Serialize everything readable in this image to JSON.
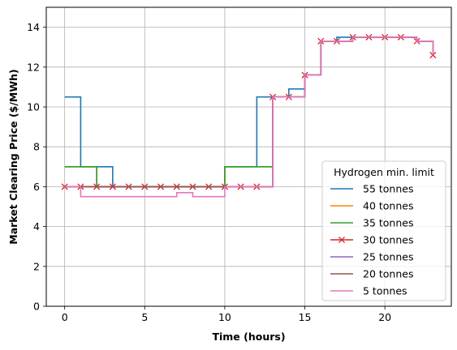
{
  "chart_data": {
    "type": "line",
    "drawstyle": "steps-post",
    "xlabel": "Time (hours)",
    "ylabel": "Market Clearing Price ($/MWh)",
    "xlim": [
      -1.15,
      24.15
    ],
    "ylim": [
      0,
      15
    ],
    "xticks": [
      0,
      5,
      10,
      15,
      20
    ],
    "yticks": [
      0,
      2,
      4,
      6,
      8,
      10,
      12,
      14
    ],
    "grid": true,
    "legend": {
      "title": "Hydrogen min. limit",
      "placement": "lower right"
    },
    "x": [
      0,
      1,
      2,
      3,
      4,
      5,
      6,
      7,
      8,
      9,
      10,
      11,
      12,
      13,
      14,
      15,
      16,
      17,
      18,
      19,
      20,
      21,
      22,
      23
    ],
    "series": [
      {
        "name": "55 tonnes",
        "color": "#1f77b4",
        "marker": "",
        "y": [
          10.5,
          7,
          7,
          6,
          6,
          6,
          6,
          6,
          6,
          6,
          7,
          7,
          10.5,
          10.5,
          10.9,
          11.6,
          13.3,
          13.5,
          13.5,
          13.5,
          13.5,
          13.5,
          13.3,
          13.3
        ]
      },
      {
        "name": "40 tonnes",
        "color": "#ff7f0e",
        "marker": "",
        "y": [
          7,
          7,
          6,
          6,
          6,
          6,
          6,
          6,
          6,
          6,
          7,
          7,
          7,
          10.5,
          10.5,
          11.6,
          13.3,
          13.3,
          13.5,
          13.5,
          13.5,
          13.5,
          13.3,
          12.6
        ]
      },
      {
        "name": "35 tonnes",
        "color": "#2ca02c",
        "marker": "",
        "y": [
          7,
          7,
          6,
          6,
          6,
          6,
          6,
          6,
          6,
          6,
          7,
          7,
          7,
          10.5,
          10.5,
          11.6,
          13.3,
          13.3,
          13.5,
          13.5,
          13.5,
          13.5,
          13.3,
          12.6
        ]
      },
      {
        "name": "30 tonnes",
        "color": "#d62728",
        "marker": "x",
        "y": [
          6,
          6,
          6,
          6,
          6,
          6,
          6,
          6,
          6,
          6,
          6,
          6,
          6,
          10.5,
          10.5,
          11.6,
          13.3,
          13.3,
          13.5,
          13.5,
          13.5,
          13.5,
          13.3,
          12.6
        ]
      },
      {
        "name": "25 tonnes",
        "color": "#9467bd",
        "marker": "",
        "y": [
          6,
          6,
          6,
          6,
          6,
          6,
          6,
          6,
          6,
          6,
          6,
          6,
          6,
          10.5,
          10.5,
          11.6,
          13.3,
          13.3,
          13.5,
          13.5,
          13.5,
          13.5,
          13.3,
          12.6
        ]
      },
      {
        "name": "20 tonnes",
        "color": "#8c564b",
        "marker": "",
        "y": [
          6,
          6,
          6,
          6,
          6,
          6,
          6,
          6,
          6,
          6,
          6,
          6,
          6,
          10.5,
          10.5,
          11.6,
          13.3,
          13.3,
          13.5,
          13.5,
          13.5,
          13.5,
          13.3,
          12.6
        ]
      },
      {
        "name": "5 tonnes",
        "color": "#e377c2",
        "marker": "",
        "y": [
          6,
          5.5,
          5.5,
          5.5,
          5.5,
          5.5,
          5.5,
          5.7,
          5.5,
          5.5,
          6,
          6,
          6,
          10.5,
          10.5,
          11.6,
          13.3,
          13.3,
          13.5,
          13.5,
          13.5,
          13.5,
          13.3,
          12.6
        ]
      }
    ]
  }
}
